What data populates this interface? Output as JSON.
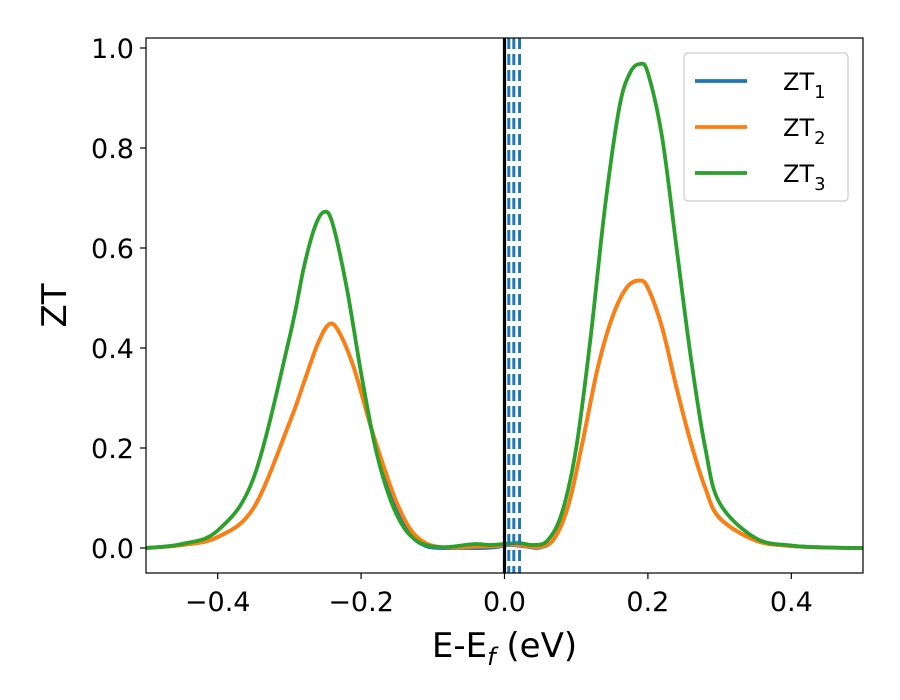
{
  "chart_data": {
    "type": "line",
    "xlabel": {
      "base": "E-E",
      "sub": "f",
      "suffix": " (eV)"
    },
    "ylabel": "ZT",
    "xlim": [
      -0.5,
      0.5
    ],
    "ylim": [
      -0.05,
      1.02
    ],
    "x_ticks": [
      -0.4,
      -0.2,
      0.0,
      0.2,
      0.4
    ],
    "x_tick_labels": [
      "−0.4",
      "−0.2",
      "0.0",
      "0.2",
      "0.4"
    ],
    "y_ticks": [
      0.0,
      0.2,
      0.4,
      0.6,
      0.8,
      1.0
    ],
    "y_tick_labels": [
      "0.0",
      "0.2",
      "0.4",
      "0.6",
      "0.8",
      "1.0"
    ],
    "grid": false,
    "legend_position": "top-right",
    "series": [
      {
        "name": "ZT1",
        "label_base": "ZT",
        "label_sub": "1",
        "color": "#1f77b4",
        "x": [
          -0.5,
          -0.45,
          -0.4,
          -0.35,
          -0.3,
          -0.28,
          -0.26,
          -0.244,
          -0.23,
          -0.21,
          -0.19,
          -0.17,
          -0.15,
          -0.13,
          -0.11,
          -0.09,
          -0.07,
          -0.05,
          -0.03,
          -0.01,
          0.0,
          0.01,
          0.03,
          0.05,
          0.07,
          0.09,
          0.11,
          0.13,
          0.15,
          0.17,
          0.188,
          0.2,
          0.22,
          0.24,
          0.26,
          0.28,
          0.3,
          0.35,
          0.4,
          0.45,
          0.5
        ],
        "y": [
          0.0,
          0.006,
          0.022,
          0.08,
          0.25,
          0.33,
          0.41,
          0.448,
          0.43,
          0.36,
          0.26,
          0.16,
          0.08,
          0.025,
          0.004,
          0.0,
          0.0,
          0.0,
          0.0,
          0.002,
          0.005,
          0.006,
          0.003,
          0.001,
          0.02,
          0.09,
          0.22,
          0.36,
          0.46,
          0.52,
          0.535,
          0.52,
          0.44,
          0.32,
          0.21,
          0.12,
          0.06,
          0.015,
          0.004,
          0.001,
          0.0
        ]
      },
      {
        "name": "ZT2",
        "label_base": "ZT",
        "label_sub": "2",
        "color": "#ff7f0e",
        "x": [
          -0.5,
          -0.45,
          -0.4,
          -0.35,
          -0.3,
          -0.28,
          -0.26,
          -0.244,
          -0.23,
          -0.21,
          -0.19,
          -0.17,
          -0.15,
          -0.13,
          -0.11,
          -0.09,
          -0.07,
          -0.05,
          -0.03,
          -0.01,
          0.0,
          0.01,
          0.03,
          0.05,
          0.07,
          0.09,
          0.11,
          0.13,
          0.15,
          0.17,
          0.188,
          0.2,
          0.22,
          0.24,
          0.26,
          0.28,
          0.3,
          0.35,
          0.4,
          0.45,
          0.5
        ],
        "y": [
          0.0,
          0.006,
          0.022,
          0.08,
          0.25,
          0.33,
          0.41,
          0.448,
          0.43,
          0.36,
          0.26,
          0.17,
          0.09,
          0.035,
          0.01,
          0.002,
          0.001,
          0.002,
          0.003,
          0.004,
          0.006,
          0.007,
          0.004,
          0.002,
          0.02,
          0.09,
          0.22,
          0.36,
          0.46,
          0.52,
          0.535,
          0.52,
          0.44,
          0.32,
          0.21,
          0.12,
          0.06,
          0.015,
          0.004,
          0.001,
          0.0
        ]
      },
      {
        "name": "ZT3",
        "label_base": "ZT",
        "label_sub": "3",
        "color": "#2ca02c",
        "x": [
          -0.5,
          -0.45,
          -0.4,
          -0.35,
          -0.3,
          -0.28,
          -0.265,
          -0.252,
          -0.24,
          -0.22,
          -0.2,
          -0.18,
          -0.16,
          -0.14,
          -0.12,
          -0.1,
          -0.08,
          -0.06,
          -0.04,
          -0.02,
          0.0,
          0.02,
          0.04,
          0.06,
          0.08,
          0.1,
          0.12,
          0.14,
          0.16,
          0.175,
          0.189,
          0.2,
          0.22,
          0.24,
          0.26,
          0.28,
          0.3,
          0.35,
          0.4,
          0.45,
          0.5
        ],
        "y": [
          0.0,
          0.008,
          0.035,
          0.14,
          0.42,
          0.56,
          0.64,
          0.672,
          0.65,
          0.52,
          0.35,
          0.2,
          0.1,
          0.04,
          0.012,
          0.003,
          0.002,
          0.005,
          0.008,
          0.006,
          0.008,
          0.01,
          0.006,
          0.015,
          0.07,
          0.2,
          0.42,
          0.68,
          0.88,
          0.95,
          0.968,
          0.95,
          0.82,
          0.6,
          0.38,
          0.2,
          0.09,
          0.02,
          0.005,
          0.001,
          0.0
        ]
      }
    ],
    "vertical_lines": [
      {
        "x": 0.0,
        "style": "solid",
        "color": "#000000"
      },
      {
        "x": 0.006,
        "style": "dashed",
        "color": "#1f77b4"
      },
      {
        "x": 0.013,
        "style": "dashed",
        "color": "#1f77b4"
      },
      {
        "x": 0.021,
        "style": "dashed",
        "color": "#1f77b4"
      }
    ]
  }
}
